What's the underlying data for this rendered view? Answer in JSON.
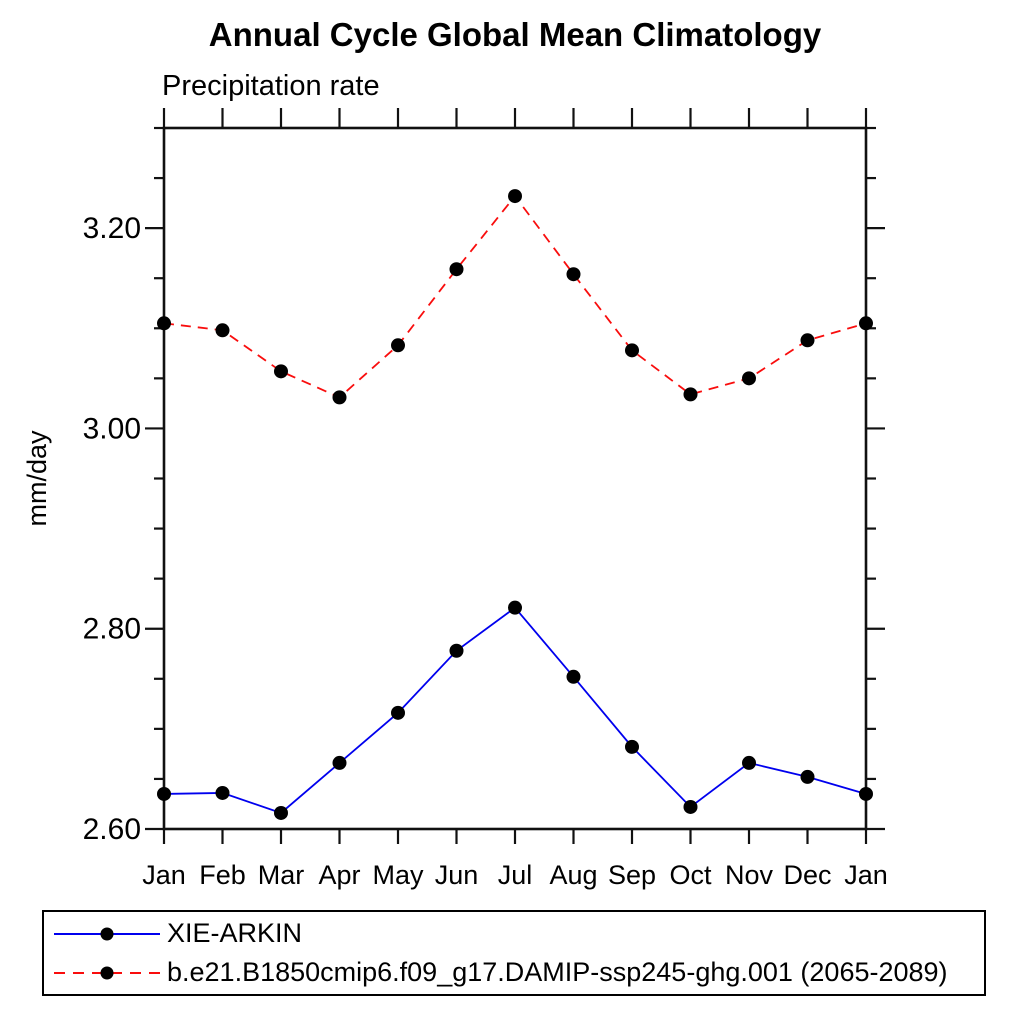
{
  "chart_data": {
    "type": "line",
    "title": "Annual Cycle Global Mean Climatology",
    "subtitle_left": "Precipitation rate",
    "ylabel": "mm/day",
    "xlabel": "",
    "categories": [
      "Jan",
      "Feb",
      "Mar",
      "Apr",
      "May",
      "Jun",
      "Jul",
      "Aug",
      "Sep",
      "Oct",
      "Nov",
      "Dec",
      "Jan"
    ],
    "ylim": [
      2.6,
      3.3
    ],
    "y_major_ticks": [
      2.6,
      2.8,
      3.0,
      3.2
    ],
    "y_tick_labels": [
      "2.60",
      "2.80",
      "3.00",
      "3.20"
    ],
    "y_minor_step": 0.05,
    "grid": false,
    "legend_position": "bottom-left-box",
    "units": "mm/day",
    "series": [
      {
        "name": "XIE-ARKIN",
        "color": "#0000ee",
        "line_style": "solid",
        "marker": "filled-circle",
        "marker_color": "#000000",
        "values": [
          2.635,
          2.636,
          2.616,
          2.666,
          2.716,
          2.778,
          2.821,
          2.752,
          2.682,
          2.622,
          2.666,
          2.652,
          2.635
        ]
      },
      {
        "name": "b.e21.B1850cmip6.f09_g17.DAMIP-ssp245-ghg.001 (2065-2089)",
        "color": "#f90d0d",
        "line_style": "dashed",
        "marker": "filled-circle",
        "marker_color": "#000000",
        "values": [
          3.105,
          3.098,
          3.057,
          3.031,
          3.083,
          3.159,
          3.232,
          3.154,
          3.078,
          3.034,
          3.05,
          3.088,
          3.105
        ]
      }
    ]
  },
  "colors": {
    "axis": "#111111",
    "text": "#000000",
    "background": "#ffffff"
  }
}
